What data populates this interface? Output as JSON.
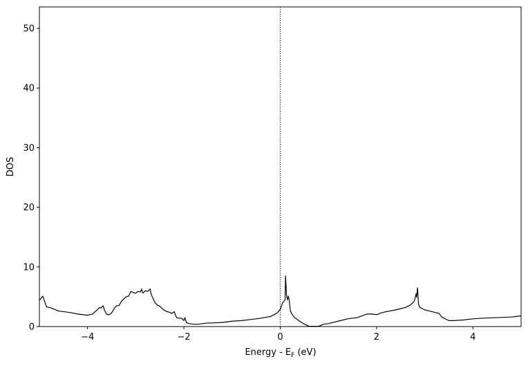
{
  "chart_data": {
    "type": "line",
    "xlabel": "Energy - E_F (eV)",
    "xlabel_parts": {
      "pre": "Energy - E",
      "sub": "F",
      "post": " (eV)"
    },
    "ylabel": "DOS",
    "xlim": [
      -5,
      5
    ],
    "ylim": [
      0,
      53.6
    ],
    "xticks": [
      -4,
      -2,
      0,
      2,
      4
    ],
    "xtick_labels": [
      "−4",
      "−2",
      "0",
      "2",
      "4"
    ],
    "yticks": [
      0,
      10,
      20,
      30,
      40,
      50
    ],
    "ytick_labels": [
      "0",
      "10",
      "20",
      "30",
      "40",
      "50"
    ],
    "grid": false,
    "fermi_line": {
      "x": 0,
      "style": "dotted",
      "color": "#000000"
    },
    "series": [
      {
        "color": "#000000",
        "x": [
          -5.0,
          -4.93,
          -4.85,
          -4.75,
          -4.6,
          -4.4,
          -4.2,
          -4.0,
          -3.9,
          -3.8,
          -3.75,
          -3.72,
          -3.68,
          -3.65,
          -3.6,
          -3.55,
          -3.5,
          -3.45,
          -3.4,
          -3.35,
          -3.3,
          -3.25,
          -3.2,
          -3.15,
          -3.1,
          -3.05,
          -3.0,
          -2.95,
          -2.9,
          -2.88,
          -2.85,
          -2.8,
          -2.75,
          -2.7,
          -2.68,
          -2.65,
          -2.6,
          -2.55,
          -2.5,
          -2.45,
          -2.4,
          -2.35,
          -2.3,
          -2.25,
          -2.2,
          -2.18,
          -2.15,
          -2.1,
          -2.05,
          -2.0,
          -1.98,
          -1.95,
          -1.9,
          -1.8,
          -1.7,
          -1.6,
          -1.5,
          -1.4,
          -1.2,
          -1.0,
          -0.8,
          -0.6,
          -0.4,
          -0.2,
          -0.1,
          -0.05,
          0.0,
          0.05,
          0.1,
          0.11,
          0.13,
          0.15,
          0.17,
          0.19,
          0.21,
          0.25,
          0.3,
          0.4,
          0.5,
          0.6,
          0.7,
          0.8,
          0.9,
          1.0,
          1.2,
          1.4,
          1.6,
          1.8,
          1.9,
          2.0,
          2.1,
          2.2,
          2.4,
          2.5,
          2.6,
          2.7,
          2.75,
          2.78,
          2.8,
          2.82,
          2.83,
          2.85,
          2.87,
          2.9,
          3.0,
          3.1,
          3.2,
          3.25,
          3.3,
          3.35,
          3.4,
          3.5,
          3.6,
          3.8,
          4.0,
          4.2,
          4.5,
          4.8,
          4.9,
          5.0
        ],
        "y": [
          4.4,
          5.1,
          3.3,
          3.1,
          2.6,
          2.4,
          2.1,
          1.9,
          2.1,
          2.8,
          3.2,
          3.1,
          3.5,
          2.8,
          2.0,
          2.0,
          2.3,
          3.0,
          3.5,
          3.5,
          4.2,
          4.6,
          5.0,
          5.1,
          5.9,
          5.7,
          5.6,
          5.9,
          5.8,
          6.3,
          5.6,
          6.0,
          5.9,
          6.3,
          5.4,
          4.9,
          4.0,
          3.6,
          3.4,
          3.0,
          2.7,
          2.5,
          2.4,
          2.2,
          2.5,
          2.0,
          1.5,
          1.4,
          1.4,
          1.0,
          1.5,
          0.7,
          0.5,
          0.4,
          0.4,
          0.5,
          0.6,
          0.6,
          0.7,
          0.9,
          1.0,
          1.2,
          1.4,
          1.7,
          2.1,
          2.4,
          2.9,
          4.0,
          4.5,
          8.5,
          5.3,
          4.5,
          5.1,
          4.2,
          2.6,
          2.0,
          1.5,
          0.9,
          0.4,
          0.05,
          0.05,
          0.05,
          0.4,
          0.5,
          0.9,
          1.3,
          1.5,
          2.1,
          2.1,
          2.0,
          2.3,
          2.5,
          2.8,
          3.0,
          3.2,
          3.6,
          4.0,
          4.2,
          4.8,
          5.5,
          4.9,
          6.5,
          3.8,
          3.2,
          2.8,
          2.6,
          2.4,
          2.3,
          2.2,
          1.6,
          1.4,
          1.0,
          1.0,
          1.1,
          1.3,
          1.4,
          1.5,
          1.6,
          1.7,
          1.8
        ]
      }
    ]
  }
}
